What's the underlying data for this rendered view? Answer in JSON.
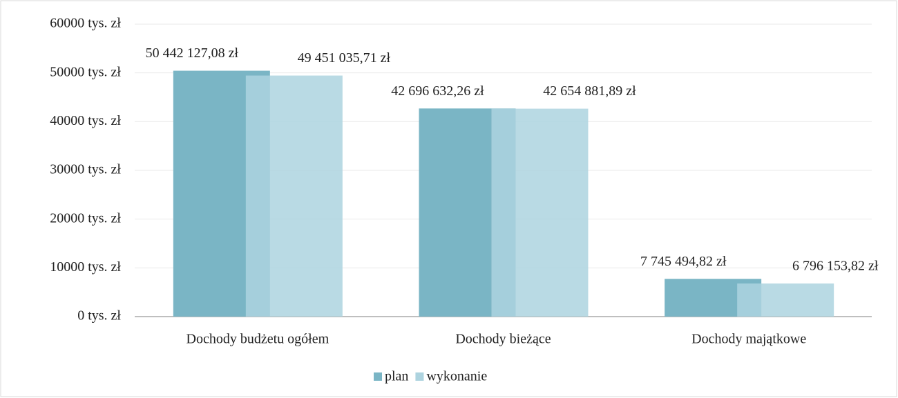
{
  "chart_data": {
    "type": "bar",
    "categories": [
      "Dochody budżetu ogółem",
      "Dochody bieżące",
      "Dochody majątkowe"
    ],
    "series": [
      {
        "name": "plan",
        "color": "#7ab5c5",
        "values": [
          50442.12708,
          42696.63226,
          7745.49482
        ],
        "value_labels": [
          "50 442 127,08 zł",
          "42 696 632,26 zł",
          "7 745 494,82 zł"
        ]
      },
      {
        "name": "wykonanie",
        "color": "#add3df",
        "values": [
          49451.03571,
          42654.88189,
          6796.15382
        ],
        "value_labels": [
          "49 451 035,71 zł",
          "42 654 881,89 zł",
          "6 796 153,82 zł"
        ]
      }
    ],
    "ylim": [
      0,
      60000
    ],
    "yticks": [
      {
        "value": 0,
        "label": "0 tys. zł"
      },
      {
        "value": 10000,
        "label": "10000 tys. zł"
      },
      {
        "value": 20000,
        "label": "20000 tys. zł"
      },
      {
        "value": 30000,
        "label": "30000 tys. zł"
      },
      {
        "value": 40000,
        "label": "40000 tys. zł"
      },
      {
        "value": 50000,
        "label": "50000 tys. zł"
      },
      {
        "value": 60000,
        "label": "60000 tys. zł"
      }
    ],
    "grid": true,
    "legend": "bottom"
  }
}
